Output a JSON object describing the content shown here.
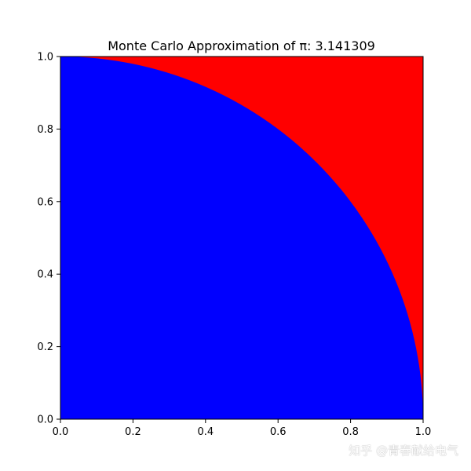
{
  "chart_data": {
    "type": "scatter",
    "title": "Monte Carlo Approximation of π: 3.141309",
    "xlabel": "",
    "ylabel": "",
    "xlim": [
      0.0,
      1.0
    ],
    "ylim": [
      0.0,
      1.0
    ],
    "x_ticks": [
      "0.0",
      "0.2",
      "0.4",
      "0.6",
      "0.8",
      "1.0"
    ],
    "y_ticks": [
      "0.0",
      "0.2",
      "0.4",
      "0.6",
      "0.8",
      "1.0"
    ],
    "grid": false,
    "legend": "none",
    "series": [
      {
        "points_region": "inside unit circle",
        "color": "#0000ff"
      },
      {
        "points_region": "outside unit circle",
        "color": "#ff0000"
      }
    ]
  },
  "watermark": "知乎 @青春献给电气"
}
